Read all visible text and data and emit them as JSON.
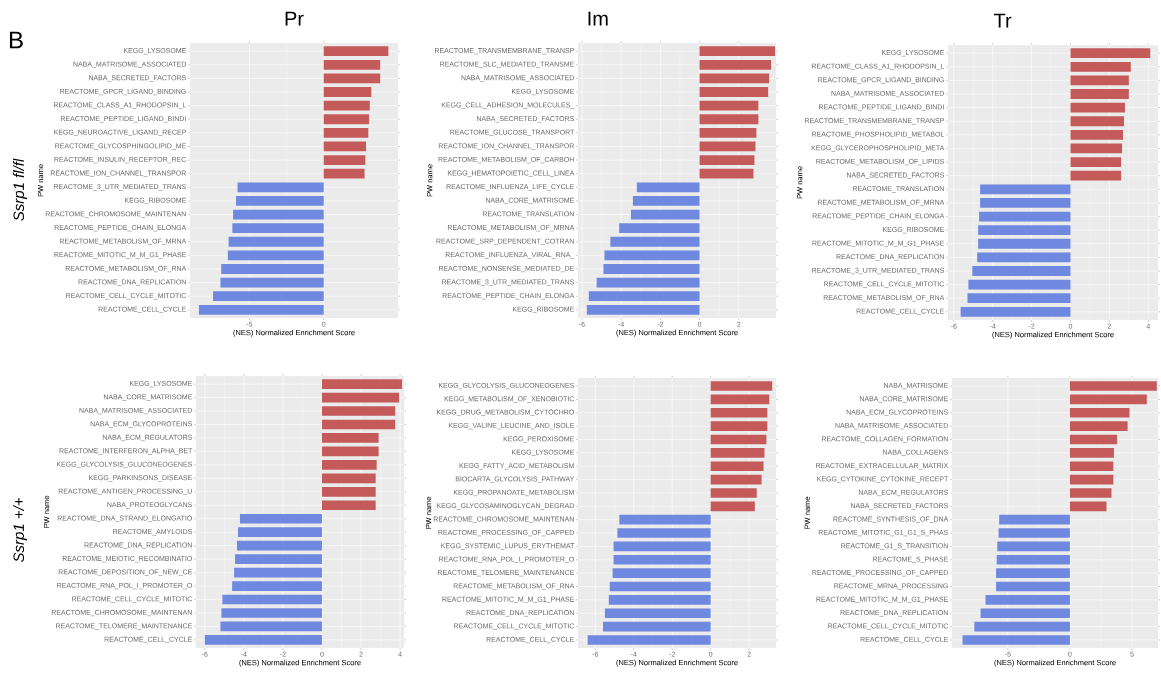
{
  "chart_data": [
    {
      "type": "bar",
      "orientation": "horizontal",
      "title": "Pr",
      "xlabel": "(NES) Normalized Enrichment Score",
      "ylabel": "PW name",
      "annotations": [
        "B",
        "Ssrp1 fl/fl"
      ],
      "grid": true,
      "xlim": [
        -9,
        5
      ],
      "xticks": [
        -5,
        0
      ],
      "categories": [
        "KEGG_LYSOSOME",
        "NABA_MATRISOME_ASSOCIATED",
        "NABA_SECRETED_FACTORS",
        "REACTOME_GPCR_LIGAND_BINDING",
        "REACTOME_CLASS_A1_RHODOPSIN_L",
        "REACTOME_PEPTIDE_LIGAND_BINDI",
        "KEGG_NEUROACTIVE_LIGAND_RECEP",
        "REACTOME_GLYCOSPHINGOLIPID_ME",
        "REACTOME_INSULIN_RECEPTOR_REC",
        "REACTOME_ION_CHANNEL_TRANSPOR",
        "REACTOME_3_UTR_MEDIATED_TRANS",
        "KEGG_RIBOSOME",
        "REACTOME_CHROMOSOME_MAINTENAN",
        "REACTOME_PEPTIDE_CHAIN_ELONGA",
        "REACTOME_METABOLISM_OF_MRNA",
        "REACTOME_MITOTIC_M_M_G1_PHASE",
        "REACTOME_METABOLISM_OF_RNA",
        "REACTOME_DNA_REPLICATION",
        "REACTOME_CELL_CYCLE_MITOTIC",
        "REACTOME_CELL_CYCLE"
      ],
      "values": [
        4.35,
        3.8,
        3.8,
        3.2,
        3.1,
        3.05,
        3.0,
        2.85,
        2.8,
        2.75,
        -5.8,
        -5.9,
        -6.1,
        -6.15,
        -6.4,
        -6.45,
        -6.9,
        -6.95,
        -7.45,
        -8.4
      ],
      "colors": [
        "#c55a5a",
        "#c55a5a",
        "#c55a5a",
        "#c55a5a",
        "#c55a5a",
        "#c55a5a",
        "#c55a5a",
        "#c55a5a",
        "#c55a5a",
        "#c55a5a",
        "#6f88e0",
        "#6f88e0",
        "#6f88e0",
        "#6f88e0",
        "#6f88e0",
        "#6f88e0",
        "#6f88e0",
        "#6f88e0",
        "#6f88e0",
        "#6f88e0"
      ]
    },
    {
      "type": "bar",
      "orientation": "horizontal",
      "title": "Im",
      "xlabel": "(NES) Normalized Enrichment Score",
      "ylabel": "PW name",
      "grid": true,
      "xlim": [
        -6.2,
        3.9
      ],
      "xticks": [
        -6,
        -4,
        -2,
        0,
        2
      ],
      "categories": [
        "REACTOME_TRANSMEMBRANE_TRANSP",
        "REACTOME_SLC_MEDIATED_TRANSME",
        "NABA_MATRISOME_ASSOCIATED",
        "KEGG_LYSOSOME",
        "KEGG_CELL_ADHESION_MOLECULES_",
        "NABA_SECRETED_FACTORS",
        "REACTOME_GLUCOSE_TRANSPORT",
        "REACTOME_ION_CHANNEL_TRANSPOR",
        "REACTOME_METABOLISM_OF_CARBOH",
        "KEGG_HEMATOPOIETIC_CELL_LINEA",
        "REACTOME_INFLUENZA_LIFE_CYCLE",
        "NABA_CORE_MATRISOME",
        "REACTOME_TRANSLATION",
        "REACTOME_METABOLISM_OF_MRNA",
        "REACTOME_SRP_DEPENDENT_COTRAN",
        "REACTOME_INFLUENZA_VIRAL_RNA_",
        "REACTOME_NONSENSE_MEDIATED_DE",
        "REACTOME_3_UTR_MEDIATED_TRANS",
        "REACTOME_PEPTIDE_CHAIN_ELONGA",
        "KEGG_RIBOSOME"
      ],
      "values": [
        3.85,
        3.65,
        3.55,
        3.5,
        3.0,
        3.0,
        2.9,
        2.85,
        2.8,
        2.75,
        -3.2,
        -3.4,
        -3.5,
        -4.1,
        -4.55,
        -4.85,
        -4.9,
        -5.25,
        -5.65,
        -5.75
      ],
      "colors": [
        "#c55a5a",
        "#c55a5a",
        "#c55a5a",
        "#c55a5a",
        "#c55a5a",
        "#c55a5a",
        "#c55a5a",
        "#c55a5a",
        "#c55a5a",
        "#c55a5a",
        "#6f88e0",
        "#6f88e0",
        "#6f88e0",
        "#6f88e0",
        "#6f88e0",
        "#6f88e0",
        "#6f88e0",
        "#6f88e0",
        "#6f88e0",
        "#6f88e0"
      ]
    },
    {
      "type": "bar",
      "orientation": "horizontal",
      "title": "Tr",
      "xlabel": "(NES) Normalized Enrichment Score",
      "ylabel": "PW name",
      "grid": true,
      "xlim": [
        -6.3,
        4.5
      ],
      "xticks": [
        -6,
        -4,
        -2,
        0,
        2,
        4
      ],
      "categories": [
        "KEGG_LYSOSOME",
        "REACTOME_CLASS_A1_RHODOPSIN_L",
        "REACTOME_GPCR_LIGAND_BINDING",
        "NABA_MATRISOME_ASSOCIATED",
        "REACTOME_PEPTIDE_LIGAND_BINDI",
        "REACTOME_TRANSMEMBRANE_TRANSP",
        "REACTOME_PHOSPHOLIPID_METABOL",
        "KEGG_GLYCEROPHOSPHOLIPID_META",
        "REACTOME_METABOLISM_OF_LIPIDS",
        "NABA_SECRETED_FACTORS",
        "REACTOME_TRANSLATION",
        "REACTOME_METABOLISM_OF_MRNA",
        "REACTOME_PEPTIDE_CHAIN_ELONGA",
        "KEGG_RIBOSOME",
        "REACTOME_MITOTIC_M_M_G1_PHASE",
        "REACTOME_DNA_REPLICATION",
        "REACTOME_3_UTR_MEDIATED_TRANS",
        "REACTOME_CELL_CYCLE_MITOTIC",
        "REACTOME_METABOLISM_OF_RNA",
        "REACTOME_CELL_CYCLE"
      ],
      "values": [
        4.1,
        3.1,
        3.0,
        3.0,
        2.8,
        2.75,
        2.7,
        2.65,
        2.6,
        2.6,
        -4.65,
        -4.65,
        -4.7,
        -4.75,
        -4.75,
        -4.8,
        -5.05,
        -5.25,
        -5.3,
        -5.65
      ],
      "colors": [
        "#c55a5a",
        "#c55a5a",
        "#c55a5a",
        "#c55a5a",
        "#c55a5a",
        "#c55a5a",
        "#c55a5a",
        "#c55a5a",
        "#c55a5a",
        "#c55a5a",
        "#6f88e0",
        "#6f88e0",
        "#6f88e0",
        "#6f88e0",
        "#6f88e0",
        "#6f88e0",
        "#6f88e0",
        "#6f88e0",
        "#6f88e0",
        "#6f88e0"
      ]
    },
    {
      "type": "bar",
      "orientation": "horizontal",
      "xlabel": "(NES) Normalized Enrichment Score",
      "ylabel": "PW name",
      "annotations": [
        "Ssrp1 +/+"
      ],
      "grid": true,
      "xlim": [
        -6.45,
        4.2
      ],
      "xticks": [
        -6,
        -4,
        -2,
        0,
        2,
        4
      ],
      "categories": [
        "KEGG_LYSOSOME",
        "NABA_CORE_MATRISOME",
        "NABA_MATRISOME_ASSOCIATED",
        "NABA_ECM_GLYCOPROTEINS",
        "NABA_ECM_REGULATORS",
        "REACTOME_INTERFERON_ALPHA_BET",
        "KEGG_GLYCOLYSIS_GLUCONEOGENES",
        "KEGG_PARKINSONS_DISEASE",
        "REACTOME_ANTIGEN_PROCESSING_U",
        "NABA_PROTEOGLYCANS",
        "REACTOME_DNA_STRAND_ELONGATIO",
        "REACTOME_AMYLOIDS",
        "REACTOME_DNA_REPLICATION",
        "REACTOME_MEIOTIC_RECOMBINATIO",
        "REACTOME_DEPOSITION_OF_NEW_CE",
        "REACTOME_RNA_POL_I_PROMOTER_O",
        "REACTOME_CELL_CYCLE_MITOTIC",
        "REACTOME_CHROMOSOME_MAINTENAN",
        "REACTOME_TELOMERE_MAINTENANCE",
        "REACTOME_CELL_CYCLE"
      ],
      "values": [
        4.1,
        3.95,
        3.75,
        3.75,
        2.9,
        2.9,
        2.8,
        2.75,
        2.75,
        2.75,
        -4.2,
        -4.3,
        -4.35,
        -4.45,
        -4.5,
        -4.6,
        -5.1,
        -5.15,
        -5.2,
        -6.0
      ],
      "colors": [
        "#c55a5a",
        "#c55a5a",
        "#c55a5a",
        "#c55a5a",
        "#c55a5a",
        "#c55a5a",
        "#c55a5a",
        "#c55a5a",
        "#c55a5a",
        "#c55a5a",
        "#6f88e0",
        "#6f88e0",
        "#6f88e0",
        "#6f88e0",
        "#6f88e0",
        "#6f88e0",
        "#6f88e0",
        "#6f88e0",
        "#6f88e0",
        "#6f88e0"
      ]
    },
    {
      "type": "bar",
      "orientation": "horizontal",
      "xlabel": "(NES) Normalized Enrichment Score",
      "ylabel": "PW name",
      "grid": true,
      "xlim": [
        -6.9,
        3.4
      ],
      "xticks": [
        -6,
        -4,
        -2,
        0,
        2
      ],
      "categories": [
        "KEGG_GLYCOLYSIS_GLUCONEOGENES",
        "KEGG_METABOLISM_OF_XENOBIOTIC",
        "KEGG_DRUG_METABOLISM_CYTOCHRO",
        "KEGG_VALINE_LEUCINE_AND_ISOLE",
        "KEGG_PEROXISOME",
        "KEGG_LYSOSOME",
        "KEGG_FATTY_ACID_METABOLISM",
        "BIOCARTA_GLYCOLYSIS_PATHWAY",
        "KEGG_PROPANOATE_METABOLISM",
        "KEGG_GLYCOSAMINOGLYCAN_DEGRAD",
        "REACTOME_CHROMOSOME_MAINTENAN",
        "REACTOME_PROCESSING_OF_CAPPED",
        "KEGG_SYSTEMIC_LUPUS_ERYTHEMAT",
        "REACTOME_RNA_POL_I_PROMOTER_O",
        "REACTOME_TELOMERE_MAINTENANCE",
        "REACTOME_METABOLISM_OF_RNA",
        "REACTOME_MITOTIC_M_M_G1_PHASE",
        "REACTOME_DNA_REPLICATION",
        "REACTOME_CELL_CYCLE_MITOTIC",
        "REACTOME_CELL_CYCLE"
      ],
      "values": [
        3.2,
        3.05,
        2.95,
        2.95,
        2.9,
        2.8,
        2.75,
        2.65,
        2.4,
        2.3,
        -4.75,
        -4.85,
        -5.05,
        -5.05,
        -5.1,
        -5.25,
        -5.3,
        -5.5,
        -5.6,
        -6.4
      ],
      "colors": [
        "#c55a5a",
        "#c55a5a",
        "#c55a5a",
        "#c55a5a",
        "#c55a5a",
        "#c55a5a",
        "#c55a5a",
        "#c55a5a",
        "#c55a5a",
        "#c55a5a",
        "#6f88e0",
        "#6f88e0",
        "#6f88e0",
        "#6f88e0",
        "#6f88e0",
        "#6f88e0",
        "#6f88e0",
        "#6f88e0",
        "#6f88e0",
        "#6f88e0"
      ]
    },
    {
      "type": "bar",
      "orientation": "horizontal",
      "xlabel": "(NES) Normalized Enrichment Score",
      "ylabel": "PW name",
      "grid": true,
      "xlim": [
        -9.5,
        7.1
      ],
      "xticks": [
        -5,
        0,
        5
      ],
      "categories": [
        "NABA_MATRISOME",
        "NABA_CORE_MATRISOME",
        "NABA_ECM_GLYCOPROTEINS",
        "NABA_MATRISOME_ASSOCIATED",
        "REACTOME_COLLAGEN_FORMATION",
        "NABA_COLLAGENS",
        "REACTOME_EXTRACELLULAR_MATRIX",
        "KEGG_CYTOKINE_CYTOKINE_RECEPT",
        "NABA_ECM_REGULATORS",
        "NABA_SECRETED_FACTORS",
        "REACTOME_SYNTHESIS_OF_DNA",
        "REACTOME_MITOTIC_G1_G1_S_PHAS",
        "REACTOME_G1_S_TRANSITION",
        "REACTOME_S_PHASE",
        "REACTOME_PROCESSING_OF_CAPPED",
        "REACTOME_MRNA_PROCESSING",
        "REACTOME_MITOTIC_M_M_G1_PHASE",
        "REACTOME_DNA_REPLICATION",
        "REACTOME_CELL_CYCLE_MITOTIC",
        "REACTOME_CELL_CYCLE"
      ],
      "values": [
        7.0,
        6.2,
        4.8,
        4.65,
        3.8,
        3.55,
        3.5,
        3.5,
        3.35,
        2.95,
        -5.7,
        -5.75,
        -5.85,
        -5.9,
        -5.95,
        -5.95,
        -6.8,
        -7.2,
        -7.7,
        -8.65
      ],
      "colors": [
        "#c55a5a",
        "#c55a5a",
        "#c55a5a",
        "#c55a5a",
        "#c55a5a",
        "#c55a5a",
        "#c55a5a",
        "#c55a5a",
        "#c55a5a",
        "#c55a5a",
        "#6f88e0",
        "#6f88e0",
        "#6f88e0",
        "#6f88e0",
        "#6f88e0",
        "#6f88e0",
        "#6f88e0",
        "#6f88e0",
        "#6f88e0",
        "#6f88e0"
      ]
    }
  ]
}
